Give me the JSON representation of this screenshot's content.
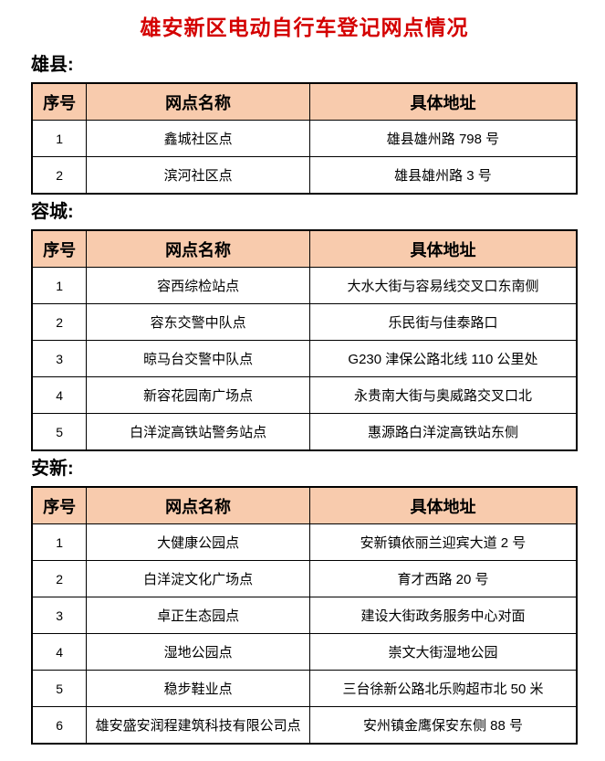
{
  "title": "雄安新区电动自行车登记网点情况",
  "colors": {
    "title_red": "#d40000",
    "header_bg": "#f8cbad",
    "border": "#000000"
  },
  "table_headers": [
    "序号",
    "网点名称",
    "具体地址"
  ],
  "sections": [
    {
      "label": "雄县:",
      "rows": [
        [
          "1",
          "鑫城社区点",
          "雄县雄州路 798 号"
        ],
        [
          "2",
          "滨河社区点",
          "雄县雄州路 3 号"
        ]
      ]
    },
    {
      "label": "容城:",
      "rows": [
        [
          "1",
          "容西综检站点",
          "大水大街与容易线交叉口东南侧"
        ],
        [
          "2",
          "容东交警中队点",
          "乐民街与佳泰路口"
        ],
        [
          "3",
          "晾马台交警中队点",
          "G230 津保公路北线 110 公里处"
        ],
        [
          "4",
          "新容花园南广场点",
          "永贵南大街与奥威路交叉口北"
        ],
        [
          "5",
          "白洋淀高铁站警务站点",
          "惠源路白洋淀高铁站东侧"
        ]
      ]
    },
    {
      "label": "安新:",
      "rows": [
        [
          "1",
          "大健康公园点",
          "安新镇依丽兰迎宾大道 2 号"
        ],
        [
          "2",
          "白洋淀文化广场点",
          "育才西路 20 号"
        ],
        [
          "3",
          "卓正生态园点",
          "建设大街政务服务中心对面"
        ],
        [
          "4",
          "湿地公园点",
          "崇文大街湿地公园"
        ],
        [
          "5",
          "稳步鞋业点",
          "三台徐新公路北乐购超市北 50 米"
        ],
        [
          "6",
          "雄安盛安润程建筑科技有限公司点",
          "安州镇金鹰保安东侧 88 号"
        ]
      ]
    }
  ]
}
